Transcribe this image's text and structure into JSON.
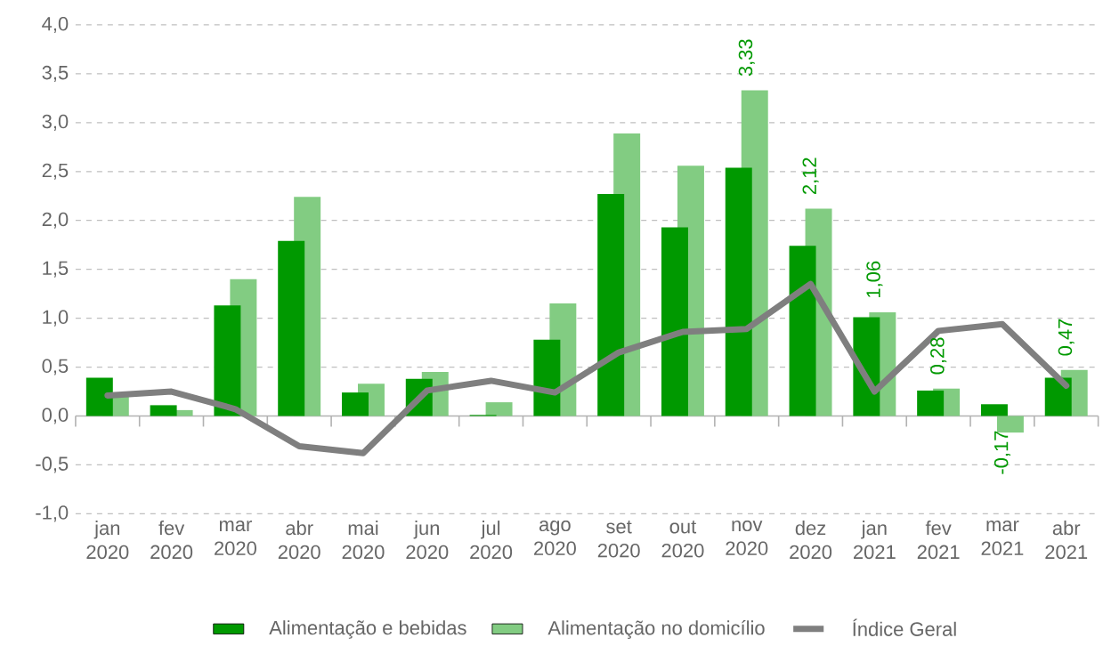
{
  "chart_data": {
    "type": "bar",
    "categories": [
      "jan 2020",
      "fev 2020",
      "mar 2020",
      "abr 2020",
      "mai 2020",
      "jun 2020",
      "jul 2020",
      "ago 2020",
      "set 2020",
      "out 2020",
      "nov 2020",
      "dez 2020",
      "jan 2021",
      "fev 2021",
      "mar 2021",
      "abr 2021"
    ],
    "series": [
      {
        "name": "Alimentação e bebidas",
        "color": "#009900",
        "values": [
          0.39,
          0.11,
          1.13,
          1.79,
          0.24,
          0.38,
          0.01,
          0.78,
          2.27,
          1.93,
          2.54,
          1.74,
          1.01,
          0.26,
          0.12,
          0.39
        ]
      },
      {
        "name": "Alimentação no domicílio",
        "color": "#82cc82",
        "values": [
          0.2,
          0.06,
          1.4,
          2.24,
          0.33,
          0.45,
          0.14,
          1.15,
          2.89,
          2.56,
          3.33,
          2.12,
          1.06,
          0.28,
          -0.17,
          0.47
        ],
        "value_labels": [
          null,
          null,
          null,
          null,
          null,
          null,
          null,
          null,
          null,
          null,
          "3,33",
          "2,12",
          "1,06",
          "0,28",
          "-0,17",
          "0,47"
        ]
      },
      {
        "name": "Índice Geral",
        "type": "line",
        "color": "#7f7f7f",
        "values": [
          0.21,
          0.25,
          0.07,
          -0.31,
          -0.38,
          0.26,
          0.36,
          0.24,
          0.65,
          0.86,
          0.89,
          1.35,
          0.25,
          0.87,
          0.94,
          0.31
        ]
      }
    ],
    "ylim": [
      -1,
      4
    ],
    "yticks": [
      {
        "value": -1,
        "label": "-1,0"
      },
      {
        "value": -0.5,
        "label": "-0,5"
      },
      {
        "value": 0,
        "label": "0,0"
      },
      {
        "value": 0.5,
        "label": "0,5"
      },
      {
        "value": 1,
        "label": "1,0"
      },
      {
        "value": 1.5,
        "label": "1,5"
      },
      {
        "value": 2,
        "label": "2,0"
      },
      {
        "value": 2.5,
        "label": "2,5"
      },
      {
        "value": 3,
        "label": "3,0"
      },
      {
        "value": 3.5,
        "label": "3,5"
      },
      {
        "value": 4,
        "label": "4,0"
      }
    ],
    "grid": "y",
    "legend": "bottom"
  }
}
